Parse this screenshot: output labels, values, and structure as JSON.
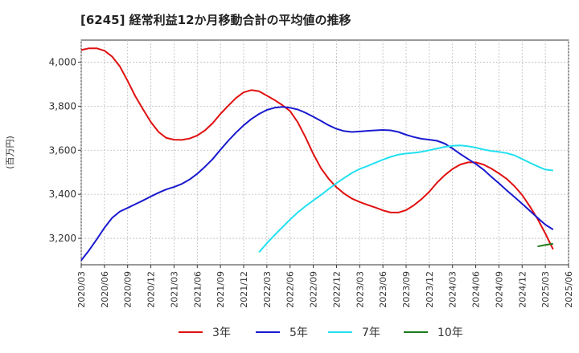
{
  "chart_data": {
    "type": "line",
    "title": "[6245]  経常利益12か月移動合計の平均値の推移",
    "xlabel": "",
    "ylabel": "(百万円)",
    "ylim": [
      3080,
      4100
    ],
    "yticks": [
      3200,
      3400,
      3600,
      3800,
      4000
    ],
    "ytick_labels": [
      "3,200",
      "3,400",
      "3,600",
      "3,800",
      "4,000"
    ],
    "x_range": [
      "2020/03",
      "2025/06"
    ],
    "xtick_labels": [
      "2020/03",
      "2020/06",
      "2020/09",
      "2020/12",
      "2021/03",
      "2021/06",
      "2021/09",
      "2021/12",
      "2022/03",
      "2022/06",
      "2022/09",
      "2022/12",
      "2023/03",
      "2023/06",
      "2023/09",
      "2023/12",
      "2024/03",
      "2024/06",
      "2024/09",
      "2024/12",
      "2025/03",
      "2025/06"
    ],
    "grid": true,
    "legend_position": "bottom",
    "series": [
      {
        "name": "3年",
        "color": "#e01010",
        "points": [
          [
            "2020/03",
            4055
          ],
          [
            "2020/04",
            4063
          ],
          [
            "2020/05",
            4063
          ],
          [
            "2020/06",
            4052
          ],
          [
            "2020/07",
            4025
          ],
          [
            "2020/08",
            3980
          ],
          [
            "2020/09",
            3915
          ],
          [
            "2020/10",
            3845
          ],
          [
            "2020/11",
            3785
          ],
          [
            "2020/12",
            3728
          ],
          [
            "2021/01",
            3683
          ],
          [
            "2021/02",
            3656
          ],
          [
            "2021/03",
            3648
          ],
          [
            "2021/04",
            3647
          ],
          [
            "2021/05",
            3653
          ],
          [
            "2021/06",
            3667
          ],
          [
            "2021/07",
            3690
          ],
          [
            "2021/08",
            3723
          ],
          [
            "2021/09",
            3765
          ],
          [
            "2021/10",
            3802
          ],
          [
            "2021/11",
            3837
          ],
          [
            "2021/12",
            3863
          ],
          [
            "2022/01",
            3873
          ],
          [
            "2022/02",
            3868
          ],
          [
            "2022/03",
            3848
          ],
          [
            "2022/04",
            3828
          ],
          [
            "2022/05",
            3805
          ],
          [
            "2022/06",
            3778
          ],
          [
            "2022/07",
            3727
          ],
          [
            "2022/08",
            3658
          ],
          [
            "2022/09",
            3583
          ],
          [
            "2022/10",
            3518
          ],
          [
            "2022/11",
            3470
          ],
          [
            "2022/12",
            3432
          ],
          [
            "2023/01",
            3403
          ],
          [
            "2023/02",
            3380
          ],
          [
            "2023/03",
            3365
          ],
          [
            "2023/04",
            3352
          ],
          [
            "2023/05",
            3340
          ],
          [
            "2023/06",
            3327
          ],
          [
            "2023/07",
            3317
          ],
          [
            "2023/08",
            3317
          ],
          [
            "2023/09",
            3328
          ],
          [
            "2023/10",
            3350
          ],
          [
            "2023/11",
            3378
          ],
          [
            "2023/12",
            3412
          ],
          [
            "2024/01",
            3453
          ],
          [
            "2024/02",
            3487
          ],
          [
            "2024/03",
            3515
          ],
          [
            "2024/04",
            3535
          ],
          [
            "2024/05",
            3545
          ],
          [
            "2024/06",
            3545
          ],
          [
            "2024/07",
            3535
          ],
          [
            "2024/08",
            3517
          ],
          [
            "2024/09",
            3495
          ],
          [
            "2024/10",
            3470
          ],
          [
            "2024/11",
            3437
          ],
          [
            "2024/12",
            3397
          ],
          [
            "2025/01",
            3345
          ],
          [
            "2025/02",
            3288
          ],
          [
            "2025/03",
            3222
          ],
          [
            "2025/04",
            3150
          ]
        ]
      },
      {
        "name": "5年",
        "color": "#1a1ad0",
        "points": [
          [
            "2020/03",
            3100
          ],
          [
            "2020/04",
            3145
          ],
          [
            "2020/05",
            3195
          ],
          [
            "2020/06",
            3248
          ],
          [
            "2020/07",
            3293
          ],
          [
            "2020/08",
            3322
          ],
          [
            "2020/09",
            3338
          ],
          [
            "2020/10",
            3355
          ],
          [
            "2020/11",
            3372
          ],
          [
            "2020/12",
            3390
          ],
          [
            "2021/01",
            3407
          ],
          [
            "2021/02",
            3422
          ],
          [
            "2021/03",
            3433
          ],
          [
            "2021/04",
            3447
          ],
          [
            "2021/05",
            3467
          ],
          [
            "2021/06",
            3493
          ],
          [
            "2021/07",
            3525
          ],
          [
            "2021/08",
            3560
          ],
          [
            "2021/09",
            3602
          ],
          [
            "2021/10",
            3643
          ],
          [
            "2021/11",
            3680
          ],
          [
            "2021/12",
            3713
          ],
          [
            "2022/01",
            3742
          ],
          [
            "2022/02",
            3765
          ],
          [
            "2022/03",
            3783
          ],
          [
            "2022/04",
            3793
          ],
          [
            "2022/05",
            3797
          ],
          [
            "2022/06",
            3793
          ],
          [
            "2022/07",
            3785
          ],
          [
            "2022/08",
            3770
          ],
          [
            "2022/09",
            3752
          ],
          [
            "2022/10",
            3733
          ],
          [
            "2022/11",
            3713
          ],
          [
            "2022/12",
            3697
          ],
          [
            "2023/01",
            3687
          ],
          [
            "2023/02",
            3683
          ],
          [
            "2023/03",
            3685
          ],
          [
            "2023/04",
            3688
          ],
          [
            "2023/05",
            3690
          ],
          [
            "2023/06",
            3692
          ],
          [
            "2023/07",
            3690
          ],
          [
            "2023/08",
            3683
          ],
          [
            "2023/09",
            3670
          ],
          [
            "2023/10",
            3660
          ],
          [
            "2023/11",
            3652
          ],
          [
            "2023/12",
            3648
          ],
          [
            "2024/01",
            3643
          ],
          [
            "2024/02",
            3630
          ],
          [
            "2024/03",
            3608
          ],
          [
            "2024/04",
            3583
          ],
          [
            "2024/05",
            3560
          ],
          [
            "2024/06",
            3538
          ],
          [
            "2024/07",
            3512
          ],
          [
            "2024/08",
            3480
          ],
          [
            "2024/09",
            3450
          ],
          [
            "2024/10",
            3418
          ],
          [
            "2024/11",
            3388
          ],
          [
            "2024/12",
            3357
          ],
          [
            "2025/01",
            3325
          ],
          [
            "2025/02",
            3293
          ],
          [
            "2025/03",
            3262
          ],
          [
            "2025/04",
            3240
          ]
        ]
      },
      {
        "name": "7年",
        "color": "#22e0f0",
        "points": [
          [
            "2022/02",
            3137
          ],
          [
            "2022/03",
            3178
          ],
          [
            "2022/04",
            3215
          ],
          [
            "2022/05",
            3250
          ],
          [
            "2022/06",
            3285
          ],
          [
            "2022/07",
            3318
          ],
          [
            "2022/08",
            3346
          ],
          [
            "2022/09",
            3372
          ],
          [
            "2022/10",
            3397
          ],
          [
            "2022/11",
            3424
          ],
          [
            "2022/12",
            3450
          ],
          [
            "2023/01",
            3474
          ],
          [
            "2023/02",
            3497
          ],
          [
            "2023/03",
            3515
          ],
          [
            "2023/04",
            3528
          ],
          [
            "2023/05",
            3543
          ],
          [
            "2023/06",
            3557
          ],
          [
            "2023/07",
            3570
          ],
          [
            "2023/08",
            3580
          ],
          [
            "2023/09",
            3585
          ],
          [
            "2023/10",
            3588
          ],
          [
            "2023/11",
            3593
          ],
          [
            "2023/12",
            3600
          ],
          [
            "2024/01",
            3608
          ],
          [
            "2024/02",
            3615
          ],
          [
            "2024/03",
            3620
          ],
          [
            "2024/04",
            3622
          ],
          [
            "2024/05",
            3618
          ],
          [
            "2024/06",
            3612
          ],
          [
            "2024/07",
            3603
          ],
          [
            "2024/08",
            3597
          ],
          [
            "2024/09",
            3593
          ],
          [
            "2024/10",
            3587
          ],
          [
            "2024/11",
            3577
          ],
          [
            "2024/12",
            3560
          ],
          [
            "2025/01",
            3543
          ],
          [
            "2025/02",
            3527
          ],
          [
            "2025/03",
            3512
          ],
          [
            "2025/04",
            3508
          ]
        ]
      },
      {
        "name": "10年",
        "color": "#1a7a1a",
        "points": [
          [
            "2025/02",
            3163
          ],
          [
            "2025/03",
            3170
          ],
          [
            "2025/04",
            3175
          ]
        ]
      }
    ]
  }
}
